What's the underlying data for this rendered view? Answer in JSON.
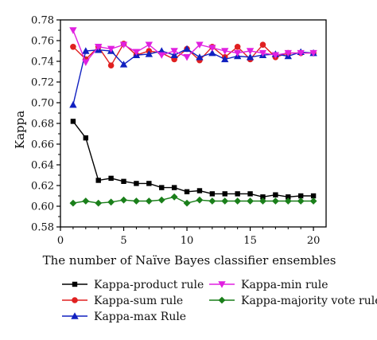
{
  "chart_data": {
    "type": "line",
    "title": "",
    "xlabel": "The number of Naïve Bayes classifier ensembles",
    "ylabel": "Kappa",
    "xlim": [
      0,
      21
    ],
    "ylim": [
      0.58,
      0.78
    ],
    "x_ticks": [
      "0",
      "5",
      "10",
      "15",
      "20"
    ],
    "y_ticks": [
      "0.58",
      "0.60",
      "0.62",
      "0.64",
      "0.66",
      "0.68",
      "0.70",
      "0.72",
      "0.74",
      "0.76",
      "0.78"
    ],
    "grid": false,
    "legend_position": "below plot, two columns",
    "x": [
      1,
      2,
      3,
      4,
      5,
      6,
      7,
      8,
      9,
      10,
      11,
      12,
      13,
      14,
      15,
      16,
      17,
      18,
      19,
      20
    ],
    "series": [
      {
        "name": "Kappa-product rule",
        "color": "#000000",
        "marker": "square",
        "values": [
          0.682,
          0.666,
          0.625,
          0.627,
          0.624,
          0.622,
          0.622,
          0.618,
          0.618,
          0.614,
          0.615,
          0.612,
          0.612,
          0.612,
          0.612,
          0.609,
          0.611,
          0.609,
          0.61,
          0.61
        ]
      },
      {
        "name": "Kappa-sum rule",
        "color": "#e02020",
        "marker": "circle",
        "values": [
          0.754,
          0.742,
          0.754,
          0.736,
          0.757,
          0.746,
          0.75,
          0.748,
          0.742,
          0.752,
          0.741,
          0.754,
          0.744,
          0.754,
          0.742,
          0.756,
          0.744,
          0.748,
          0.748,
          0.748
        ]
      },
      {
        "name": "Kappa-max Rule",
        "color": "#1020c0",
        "marker": "triangle-up",
        "values": [
          0.698,
          0.75,
          0.751,
          0.75,
          0.737,
          0.746,
          0.747,
          0.75,
          0.746,
          0.752,
          0.744,
          0.748,
          0.742,
          0.745,
          0.744,
          0.746,
          0.747,
          0.745,
          0.749,
          0.748
        ]
      },
      {
        "name": "Kappa-min rule",
        "color": "#e020e0",
        "marker": "triangle-down",
        "values": [
          0.77,
          0.739,
          0.754,
          0.752,
          0.756,
          0.749,
          0.756,
          0.746,
          0.75,
          0.744,
          0.756,
          0.753,
          0.75,
          0.748,
          0.75,
          0.748,
          0.746,
          0.748,
          0.748,
          0.748
        ]
      },
      {
        "name": "Kappa-majority vote rule",
        "color": "#1a7f1a",
        "marker": "diamond",
        "values": [
          0.603,
          0.605,
          0.603,
          0.604,
          0.606,
          0.605,
          0.605,
          0.606,
          0.609,
          0.603,
          0.606,
          0.605,
          0.605,
          0.605,
          0.605,
          0.605,
          0.605,
          0.605,
          0.605,
          0.605
        ]
      }
    ]
  }
}
